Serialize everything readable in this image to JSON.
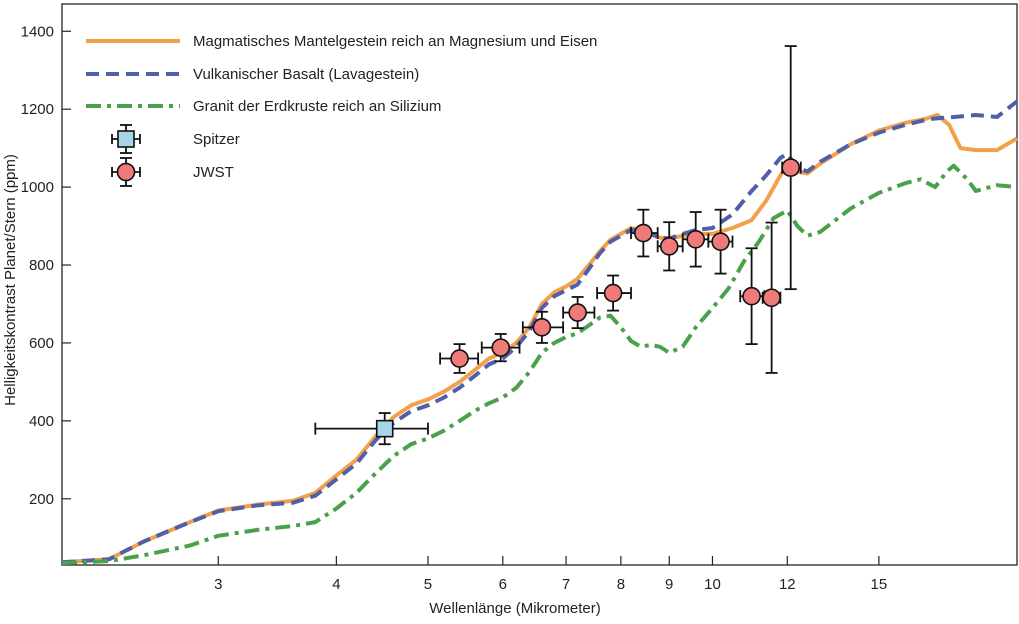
{
  "chart_data": {
    "type": "line",
    "xlabel": "Wellenlänge (Mikrometer)",
    "ylabel": "Helligkeitskontrast Planet/Stern (ppm)",
    "x_scale": "log",
    "xlim": [
      2.05,
      21.0
    ],
    "ylim": [
      30,
      1470
    ],
    "x_ticks": [
      3,
      4,
      5,
      6,
      7,
      8,
      9,
      10,
      12,
      15
    ],
    "y_ticks": [
      200,
      400,
      600,
      800,
      1000,
      1200,
      1400
    ],
    "legend_position": "top-left",
    "series": [
      {
        "name": "Magmatisches Mantelgestein reich an Magnesium und Eisen",
        "style": "solid",
        "color": "#f3a04b",
        "points": [
          [
            2.05,
            37
          ],
          [
            2.3,
            45
          ],
          [
            2.5,
            90
          ],
          [
            2.8,
            140
          ],
          [
            3.0,
            170
          ],
          [
            3.3,
            185
          ],
          [
            3.6,
            195
          ],
          [
            3.8,
            215
          ],
          [
            4.0,
            260
          ],
          [
            4.2,
            300
          ],
          [
            4.4,
            360
          ],
          [
            4.6,
            410
          ],
          [
            4.8,
            440
          ],
          [
            5.0,
            455
          ],
          [
            5.2,
            475
          ],
          [
            5.4,
            500
          ],
          [
            5.6,
            530
          ],
          [
            5.8,
            560
          ],
          [
            6.0,
            575
          ],
          [
            6.2,
            600
          ],
          [
            6.4,
            640
          ],
          [
            6.6,
            700
          ],
          [
            6.8,
            730
          ],
          [
            7.0,
            745
          ],
          [
            7.2,
            765
          ],
          [
            7.4,
            800
          ],
          [
            7.6,
            835
          ],
          [
            7.8,
            865
          ],
          [
            8.0,
            880
          ],
          [
            8.2,
            895
          ],
          [
            8.4,
            890
          ],
          [
            8.6,
            880
          ],
          [
            8.8,
            870
          ],
          [
            9.0,
            868
          ],
          [
            9.3,
            875
          ],
          [
            9.6,
            880
          ],
          [
            10.0,
            880
          ],
          [
            10.5,
            895
          ],
          [
            11.0,
            915
          ],
          [
            11.4,
            965
          ],
          [
            11.8,
            1030
          ],
          [
            12.0,
            1055
          ],
          [
            12.3,
            1040
          ],
          [
            12.6,
            1035
          ],
          [
            13.0,
            1060
          ],
          [
            14.0,
            1110
          ],
          [
            15.0,
            1145
          ],
          [
            16.0,
            1165
          ],
          [
            16.8,
            1175
          ],
          [
            17.3,
            1185
          ],
          [
            17.8,
            1160
          ],
          [
            18.3,
            1100
          ],
          [
            19.0,
            1095
          ],
          [
            20.0,
            1095
          ],
          [
            21.0,
            1125
          ]
        ]
      },
      {
        "name": "Vulkanischer Basalt (Lavagestein)",
        "style": "dashed",
        "color": "#4f5fa8",
        "points": [
          [
            2.05,
            37
          ],
          [
            2.3,
            45
          ],
          [
            2.5,
            90
          ],
          [
            2.8,
            140
          ],
          [
            3.0,
            168
          ],
          [
            3.3,
            183
          ],
          [
            3.6,
            190
          ],
          [
            3.8,
            208
          ],
          [
            4.0,
            250
          ],
          [
            4.2,
            290
          ],
          [
            4.4,
            350
          ],
          [
            4.6,
            395
          ],
          [
            4.8,
            425
          ],
          [
            5.0,
            440
          ],
          [
            5.2,
            460
          ],
          [
            5.4,
            485
          ],
          [
            5.6,
            515
          ],
          [
            5.8,
            545
          ],
          [
            6.0,
            560
          ],
          [
            6.2,
            590
          ],
          [
            6.4,
            630
          ],
          [
            6.6,
            690
          ],
          [
            6.8,
            720
          ],
          [
            7.0,
            735
          ],
          [
            7.2,
            750
          ],
          [
            7.4,
            790
          ],
          [
            7.6,
            830
          ],
          [
            7.8,
            860
          ],
          [
            8.0,
            875
          ],
          [
            8.2,
            890
          ],
          [
            8.4,
            890
          ],
          [
            8.6,
            880
          ],
          [
            8.8,
            870
          ],
          [
            9.0,
            868
          ],
          [
            9.3,
            880
          ],
          [
            9.6,
            890
          ],
          [
            10.0,
            895
          ],
          [
            10.5,
            930
          ],
          [
            11.0,
            990
          ],
          [
            11.4,
            1030
          ],
          [
            11.8,
            1075
          ],
          [
            12.0,
            1085
          ],
          [
            12.3,
            1050
          ],
          [
            12.6,
            1040
          ],
          [
            13.0,
            1065
          ],
          [
            14.0,
            1110
          ],
          [
            15.0,
            1140
          ],
          [
            16.0,
            1160
          ],
          [
            17.0,
            1175
          ],
          [
            18.0,
            1180
          ],
          [
            19.0,
            1185
          ],
          [
            20.0,
            1180
          ],
          [
            21.0,
            1220
          ]
        ]
      },
      {
        "name": "Granit der Erdkruste reich an Silizium",
        "style": "dashdot",
        "color": "#4ba04b",
        "points": [
          [
            2.05,
            35
          ],
          [
            2.3,
            40
          ],
          [
            2.5,
            55
          ],
          [
            2.8,
            80
          ],
          [
            3.0,
            105
          ],
          [
            3.3,
            120
          ],
          [
            3.6,
            130
          ],
          [
            3.8,
            140
          ],
          [
            4.0,
            175
          ],
          [
            4.2,
            215
          ],
          [
            4.4,
            265
          ],
          [
            4.6,
            310
          ],
          [
            4.8,
            340
          ],
          [
            5.0,
            355
          ],
          [
            5.2,
            375
          ],
          [
            5.4,
            400
          ],
          [
            5.6,
            425
          ],
          [
            5.8,
            445
          ],
          [
            6.0,
            460
          ],
          [
            6.2,
            485
          ],
          [
            6.4,
            525
          ],
          [
            6.6,
            575
          ],
          [
            6.8,
            600
          ],
          [
            7.0,
            615
          ],
          [
            7.2,
            625
          ],
          [
            7.4,
            645
          ],
          [
            7.6,
            665
          ],
          [
            7.8,
            670
          ],
          [
            8.0,
            640
          ],
          [
            8.2,
            605
          ],
          [
            8.4,
            590
          ],
          [
            8.6,
            595
          ],
          [
            8.8,
            590
          ],
          [
            9.0,
            575
          ],
          [
            9.3,
            590
          ],
          [
            9.6,
            640
          ],
          [
            10.0,
            690
          ],
          [
            10.4,
            740
          ],
          [
            10.8,
            810
          ],
          [
            11.2,
            860
          ],
          [
            11.6,
            920
          ],
          [
            12.0,
            940
          ],
          [
            12.3,
            900
          ],
          [
            12.6,
            875
          ],
          [
            13.0,
            885
          ],
          [
            14.0,
            945
          ],
          [
            15.0,
            985
          ],
          [
            16.0,
            1010
          ],
          [
            16.6,
            1020
          ],
          [
            17.2,
            1000
          ],
          [
            17.7,
            1040
          ],
          [
            18.0,
            1055
          ],
          [
            18.6,
            1020
          ],
          [
            19.0,
            990
          ],
          [
            20.0,
            1005
          ],
          [
            21.0,
            1000
          ]
        ]
      }
    ],
    "observations": [
      {
        "name": "Spitzer",
        "marker": "square",
        "color": "#a8d6e8",
        "points": [
          {
            "x": 4.5,
            "y": 380,
            "xerr": [
              3.8,
              5.0
            ],
            "yerr": [
              340,
              420
            ]
          }
        ]
      },
      {
        "name": "JWST",
        "marker": "circle",
        "color": "#f07a7a",
        "points": [
          {
            "x": 5.4,
            "y": 560,
            "xerr": [
              5.15,
              5.65
            ],
            "yerr": [
              523,
              597
            ]
          },
          {
            "x": 5.97,
            "y": 588,
            "xerr": [
              5.7,
              6.25
            ],
            "yerr": [
              553,
              623
            ]
          },
          {
            "x": 6.6,
            "y": 640,
            "xerr": [
              6.3,
              6.95
            ],
            "yerr": [
              600,
              680
            ]
          },
          {
            "x": 7.2,
            "y": 678,
            "xerr": [
              6.95,
              7.5
            ],
            "yerr": [
              638,
              718
            ]
          },
          {
            "x": 7.85,
            "y": 728,
            "xerr": [
              7.55,
              8.2
            ],
            "yerr": [
              683,
              773
            ]
          },
          {
            "x": 8.45,
            "y": 882,
            "xerr": [
              8.2,
              8.75
            ],
            "yerr": [
              822,
              942
            ]
          },
          {
            "x": 9.0,
            "y": 848,
            "xerr": [
              8.75,
              9.3
            ],
            "yerr": [
              786,
              910
            ]
          },
          {
            "x": 9.6,
            "y": 866,
            "xerr": [
              9.3,
              9.9
            ],
            "yerr": [
              796,
              936
            ]
          },
          {
            "x": 10.2,
            "y": 860,
            "xerr": [
              9.9,
              10.5
            ],
            "yerr": [
              778,
              942
            ]
          },
          {
            "x": 11.0,
            "y": 720,
            "xerr": [
              10.7,
              11.35
            ],
            "yerr": [
              597,
              843
            ]
          },
          {
            "x": 11.55,
            "y": 716,
            "xerr": [
              11.3,
              11.8
            ],
            "yerr": [
              523,
              909
            ]
          },
          {
            "x": 12.1,
            "y": 1050,
            "xerr": [
              11.85,
              12.4
            ],
            "yerr": [
              738,
              1362
            ]
          }
        ]
      }
    ]
  }
}
